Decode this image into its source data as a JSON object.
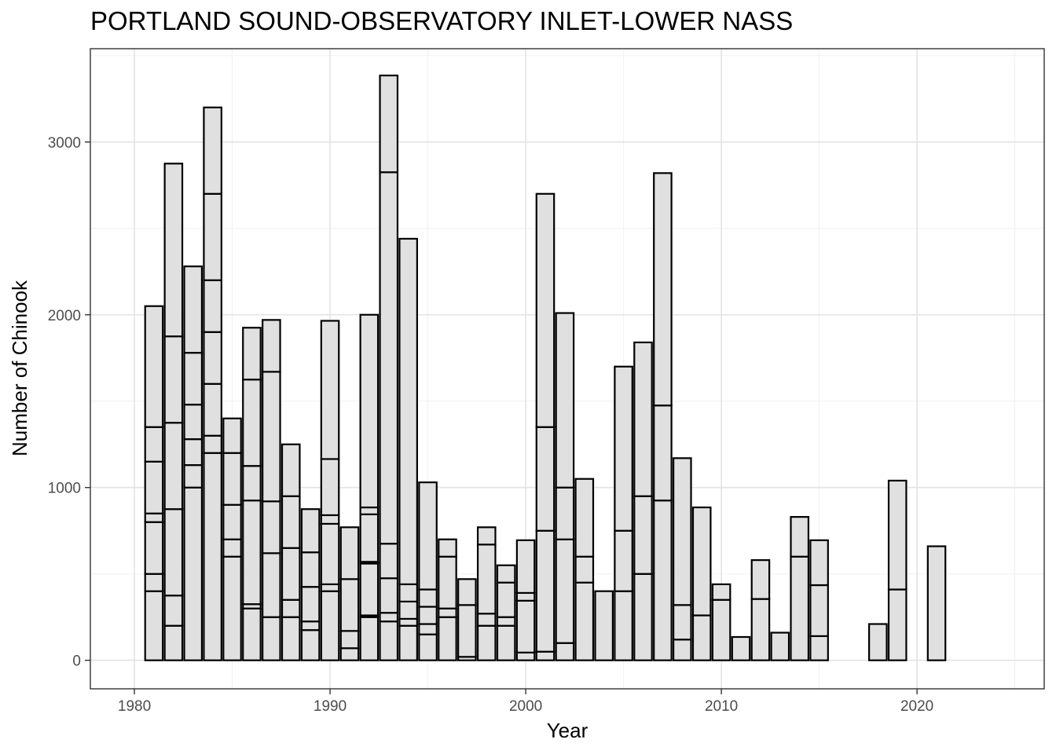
{
  "chart_data": {
    "type": "bar",
    "stacked": true,
    "title": "PORTLAND SOUND-OBSERVATORY INLET-LOWER NASS",
    "xlabel": "Year",
    "ylabel": "Number of Chinook",
    "xlim": [
      1977.75,
      2026.5
    ],
    "ylim": [
      -165,
      3540
    ],
    "x_ticks": [
      1980,
      1990,
      2000,
      2010,
      2020
    ],
    "y_ticks": [
      0,
      1000,
      2000,
      3000
    ],
    "bar_fill": "#e0e0e0",
    "bar_edge": "#000000",
    "grid": true,
    "bars": [
      {
        "year": 1981,
        "segments": [
          400,
          100,
          300,
          50,
          300,
          200,
          700
        ]
      },
      {
        "year": 1982,
        "segments": [
          200,
          175,
          500,
          500,
          500,
          1000
        ]
      },
      {
        "year": 1983,
        "segments": [
          1000,
          130,
          150,
          200,
          300,
          500
        ]
      },
      {
        "year": 1984,
        "segments": [
          1200,
          100,
          300,
          300,
          300,
          500,
          500
        ]
      },
      {
        "year": 1985,
        "segments": [
          600,
          100,
          200,
          300,
          200
        ]
      },
      {
        "year": 1986,
        "segments": [
          300,
          25,
          600,
          200,
          500,
          300
        ]
      },
      {
        "year": 1987,
        "segments": [
          250,
          370,
          300,
          750,
          300
        ]
      },
      {
        "year": 1988,
        "segments": [
          250,
          100,
          300,
          300,
          300
        ]
      },
      {
        "year": 1989,
        "segments": [
          175,
          50,
          200,
          200,
          250
        ]
      },
      {
        "year": 1990,
        "segments": [
          400,
          40,
          350,
          50,
          325,
          800
        ]
      },
      {
        "year": 1991,
        "segments": [
          70,
          100,
          300,
          300
        ]
      },
      {
        "year": 1992,
        "segments": [
          250,
          10,
          300,
          10,
          275,
          40,
          1115
        ]
      },
      {
        "year": 1993,
        "segments": [
          225,
          50,
          200,
          200,
          2150,
          560
        ]
      },
      {
        "year": 1994,
        "segments": [
          200,
          40,
          100,
          100,
          2000
        ]
      },
      {
        "year": 1995,
        "segments": [
          150,
          60,
          100,
          100,
          620
        ]
      },
      {
        "year": 1996,
        "segments": [
          250,
          50,
          300,
          100
        ]
      },
      {
        "year": 1997,
        "segments": [
          20,
          300,
          150
        ]
      },
      {
        "year": 1998,
        "segments": [
          200,
          70,
          400,
          100
        ]
      },
      {
        "year": 1999,
        "segments": [
          200,
          50,
          200,
          100
        ]
      },
      {
        "year": 2000,
        "segments": [
          45,
          300,
          45,
          305
        ]
      },
      {
        "year": 2001,
        "segments": [
          50,
          700,
          600,
          1350
        ]
      },
      {
        "year": 2002,
        "segments": [
          100,
          600,
          300,
          1010
        ]
      },
      {
        "year": 2003,
        "segments": [
          450,
          150,
          450
        ]
      },
      {
        "year": 2004,
        "segments": [
          400
        ]
      },
      {
        "year": 2005,
        "segments": [
          400,
          350,
          950
        ]
      },
      {
        "year": 2006,
        "segments": [
          500,
          450,
          890
        ]
      },
      {
        "year": 2007,
        "segments": [
          925,
          550,
          1345
        ]
      },
      {
        "year": 2008,
        "segments": [
          120,
          200,
          850
        ]
      },
      {
        "year": 2009,
        "segments": [
          260,
          625
        ]
      },
      {
        "year": 2010,
        "segments": [
          350,
          90
        ]
      },
      {
        "year": 2011,
        "segments": [
          135
        ]
      },
      {
        "year": 2012,
        "segments": [
          355,
          225
        ]
      },
      {
        "year": 2013,
        "segments": [
          160
        ]
      },
      {
        "year": 2014,
        "segments": [
          600,
          230
        ]
      },
      {
        "year": 2015,
        "segments": [
          140,
          295,
          260
        ]
      },
      {
        "year": 2018,
        "segments": [
          210
        ]
      },
      {
        "year": 2019,
        "segments": [
          410,
          630
        ]
      },
      {
        "year": 2021,
        "segments": [
          660
        ]
      }
    ]
  }
}
